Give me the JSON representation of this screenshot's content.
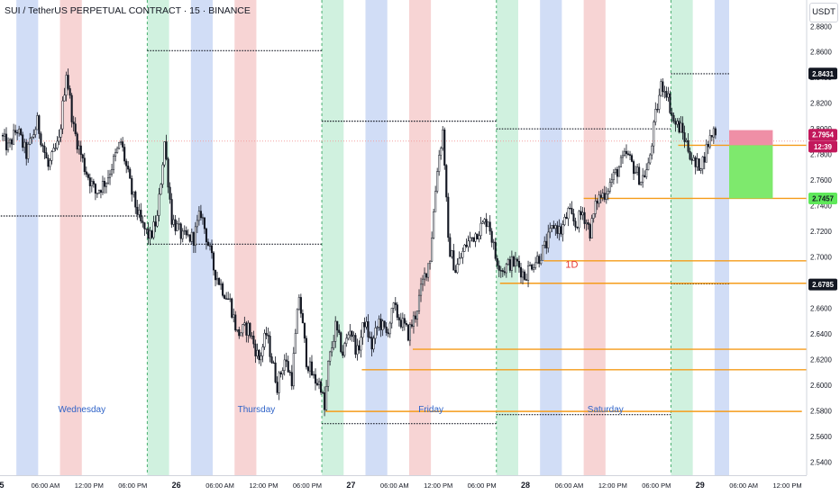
{
  "header": {
    "title": "SUI / TetherUS PERPETUAL CONTRACT · 15 · BINANCE",
    "currency_button": "USDT"
  },
  "colors": {
    "up": "#26a69a",
    "down": "#ef5350",
    "candle": "#131722",
    "session_asia": "#c9d7f5",
    "session_london": "#f6cdcd",
    "session_ny": "#c8efd9",
    "level_line": "#f59c1a",
    "take_profit": "#7ee96d",
    "stop_loss": "#ef8fa6"
  },
  "chart_data": {
    "type": "candlestick",
    "symbol": "SUI / TetherUS PERPETUAL CONTRACT",
    "interval": "15",
    "exchange": "BINANCE",
    "ylim": [
      2.535,
      2.8865
    ],
    "y_ticks": [
      2.54,
      2.56,
      2.58,
      2.6,
      2.62,
      2.64,
      2.66,
      2.68,
      2.7,
      2.72,
      2.74,
      2.76,
      2.78,
      2.8,
      2.82,
      2.84,
      2.86,
      2.88
    ],
    "x_ticks": [
      {
        "t": 0,
        "label": "5"
      },
      {
        "t": 6,
        "label": "06:00 AM"
      },
      {
        "t": 12,
        "label": "12:00 PM"
      },
      {
        "t": 18,
        "label": "06:00 PM"
      },
      {
        "t": 24,
        "label": "26"
      },
      {
        "t": 30,
        "label": "06:00 AM"
      },
      {
        "t": 36,
        "label": "12:00 PM"
      },
      {
        "t": 42,
        "label": "06:00 PM"
      },
      {
        "t": 48,
        "label": "27"
      },
      {
        "t": 54,
        "label": "06:00 AM"
      },
      {
        "t": 60,
        "label": "12:00 PM"
      },
      {
        "t": 66,
        "label": "06:00 PM"
      },
      {
        "t": 72,
        "label": "28"
      },
      {
        "t": 78,
        "label": "06:00 AM"
      },
      {
        "t": 84,
        "label": "12:00 PM"
      },
      {
        "t": 90,
        "label": "06:00 PM"
      },
      {
        "t": 96,
        "label": "29"
      },
      {
        "t": 102,
        "label": "06:00 AM"
      },
      {
        "t": 108,
        "label": "12:00 PM"
      }
    ],
    "day_labels": [
      {
        "t": 11,
        "label": "Wednesday"
      },
      {
        "t": 35,
        "label": "Thursday"
      },
      {
        "t": 59,
        "label": "Friday"
      },
      {
        "t": 83,
        "label": "Saturday"
      }
    ],
    "sessions": [
      {
        "type": "asia",
        "t0": 2.0,
        "t1": 5.0
      },
      {
        "type": "london",
        "t0": 8.0,
        "t1": 11.0
      },
      {
        "type": "ny",
        "t0": 20.0,
        "t1": 23.0
      },
      {
        "type": "asia",
        "t0": 26.0,
        "t1": 29.0
      },
      {
        "type": "london",
        "t0": 32.0,
        "t1": 35.0
      },
      {
        "type": "ny",
        "t0": 44.0,
        "t1": 47.0
      },
      {
        "type": "asia",
        "t0": 50.0,
        "t1": 53.0
      },
      {
        "type": "london",
        "t0": 56.0,
        "t1": 59.0
      },
      {
        "type": "ny",
        "t0": 68.0,
        "t1": 71.0
      },
      {
        "type": "asia",
        "t0": 74.0,
        "t1": 77.0
      },
      {
        "type": "london",
        "t0": 80.0,
        "t1": 83.0
      },
      {
        "type": "ny",
        "t0": 92.0,
        "t1": 95.0
      },
      {
        "type": "asia",
        "t0": 98.0,
        "t1": 100.0
      }
    ],
    "separators": [
      20.0,
      44.0,
      68.0,
      92.0
    ],
    "price_anchors": [
      [
        0.0,
        2.795
      ],
      [
        1.0,
        2.785
      ],
      [
        2.2,
        2.8
      ],
      [
        3.5,
        2.78
      ],
      [
        5.0,
        2.805
      ],
      [
        6.5,
        2.77
      ],
      [
        8.0,
        2.79
      ],
      [
        9.0,
        2.845
      ],
      [
        10.0,
        2.8
      ],
      [
        11.5,
        2.77
      ],
      [
        13.0,
        2.75
      ],
      [
        14.5,
        2.76
      ],
      [
        16.5,
        2.79
      ],
      [
        18.0,
        2.75
      ],
      [
        19.3,
        2.725
      ],
      [
        20.5,
        2.715
      ],
      [
        21.5,
        2.73
      ],
      [
        22.5,
        2.79
      ],
      [
        23.5,
        2.73
      ],
      [
        25.0,
        2.715
      ],
      [
        26.5,
        2.715
      ],
      [
        27.5,
        2.735
      ],
      [
        28.5,
        2.71
      ],
      [
        29.3,
        2.69
      ],
      [
        30.5,
        2.675
      ],
      [
        31.5,
        2.665
      ],
      [
        32.5,
        2.64
      ],
      [
        34.0,
        2.645
      ],
      [
        35.5,
        2.62
      ],
      [
        36.5,
        2.64
      ],
      [
        38.0,
        2.6
      ],
      [
        39.0,
        2.62
      ],
      [
        40.0,
        2.605
      ],
      [
        41.0,
        2.67
      ],
      [
        42.0,
        2.62
      ],
      [
        43.0,
        2.605
      ],
      [
        44.0,
        2.6
      ],
      [
        44.5,
        2.58
      ],
      [
        45.0,
        2.615
      ],
      [
        46.0,
        2.645
      ],
      [
        47.0,
        2.625
      ],
      [
        48.0,
        2.645
      ],
      [
        49.0,
        2.625
      ],
      [
        50.0,
        2.65
      ],
      [
        51.0,
        2.63
      ],
      [
        52.0,
        2.65
      ],
      [
        53.0,
        2.64
      ],
      [
        54.0,
        2.66
      ],
      [
        55.0,
        2.65
      ],
      [
        56.0,
        2.64
      ],
      [
        57.0,
        2.655
      ],
      [
        58.0,
        2.68
      ],
      [
        59.0,
        2.7
      ],
      [
        60.0,
        2.77
      ],
      [
        60.8,
        2.8
      ],
      [
        61.5,
        2.71
      ],
      [
        62.5,
        2.69
      ],
      [
        64.0,
        2.71
      ],
      [
        65.5,
        2.72
      ],
      [
        67.0,
        2.73
      ],
      [
        68.0,
        2.7
      ],
      [
        69.0,
        2.69
      ],
      [
        70.0,
        2.695
      ],
      [
        71.0,
        2.695
      ],
      [
        72.0,
        2.685
      ],
      [
        73.0,
        2.695
      ],
      [
        74.0,
        2.7
      ],
      [
        75.0,
        2.71
      ],
      [
        76.0,
        2.725
      ],
      [
        77.0,
        2.72
      ],
      [
        78.0,
        2.735
      ],
      [
        79.0,
        2.725
      ],
      [
        80.0,
        2.735
      ],
      [
        81.0,
        2.72
      ],
      [
        82.0,
        2.745
      ],
      [
        83.0,
        2.75
      ],
      [
        84.0,
        2.76
      ],
      [
        85.0,
        2.77
      ],
      [
        86.0,
        2.78
      ],
      [
        87.0,
        2.77
      ],
      [
        88.0,
        2.76
      ],
      [
        89.0,
        2.77
      ],
      [
        90.0,
        2.81
      ],
      [
        90.8,
        2.835
      ],
      [
        91.5,
        2.83
      ],
      [
        92.5,
        2.805
      ],
      [
        93.5,
        2.8
      ],
      [
        94.5,
        2.785
      ],
      [
        95.5,
        2.77
      ],
      [
        96.5,
        2.775
      ],
      [
        97.3,
        2.79
      ],
      [
        98.0,
        2.799
      ]
    ],
    "dotted_levels": [
      {
        "t0": 20.0,
        "t1": 44.0,
        "price": 2.861
      },
      {
        "t0": 20.0,
        "t1": 44.0,
        "price": 2.71
      },
      {
        "t0": 44.0,
        "t1": 68.0,
        "price": 2.806
      },
      {
        "t0": 44.0,
        "t1": 68.0,
        "price": 2.57
      },
      {
        "t0": 68.0,
        "t1": 92.0,
        "price": 2.8
      },
      {
        "t0": 68.0,
        "t1": 92.0,
        "price": 2.577
      },
      {
        "t0": 92.0,
        "t1": 100.0,
        "price": 2.843
      },
      {
        "t0": 92.0,
        "t1": 100.0,
        "price": 2.679
      },
      {
        "t0": -2.0,
        "t1": 20.0,
        "price": 2.732
      }
    ],
    "horizontal_levels": [
      {
        "t0": 93.0,
        "t1": 111.0,
        "price": 2.7872
      },
      {
        "t0": 80.0,
        "t1": 111.0,
        "price": 2.7457
      },
      {
        "t0": 74.5,
        "t1": 111.0,
        "price": 2.697
      },
      {
        "t0": 68.5,
        "t1": 111.0,
        "price": 2.6795
      },
      {
        "t0": 56.5,
        "t1": 111.0,
        "price": 2.628
      },
      {
        "t0": 49.5,
        "t1": 111.0,
        "price": 2.612
      },
      {
        "t0": 44.5,
        "t1": 110.0,
        "price": 2.5795
      }
    ],
    "reference_line": {
      "price": 2.7905
    },
    "annotations": [
      {
        "t": 77.5,
        "price": 2.6915,
        "text": "1D"
      }
    ],
    "position": {
      "t0": 100.0,
      "t1": 106.0,
      "entry": 2.7872,
      "stop": 2.799,
      "target": 2.7457
    },
    "price_labels": [
      {
        "price": 2.8431,
        "text": "2.8431",
        "style": "black"
      },
      {
        "price": 2.7954,
        "text": "2.7954",
        "style": "red"
      },
      {
        "price": 2.7862,
        "text": "12:39",
        "style": "red"
      },
      {
        "price": 2.7457,
        "text": "2.7457",
        "style": "green"
      },
      {
        "price": 2.6785,
        "text": "2.6785",
        "style": "black"
      }
    ]
  }
}
